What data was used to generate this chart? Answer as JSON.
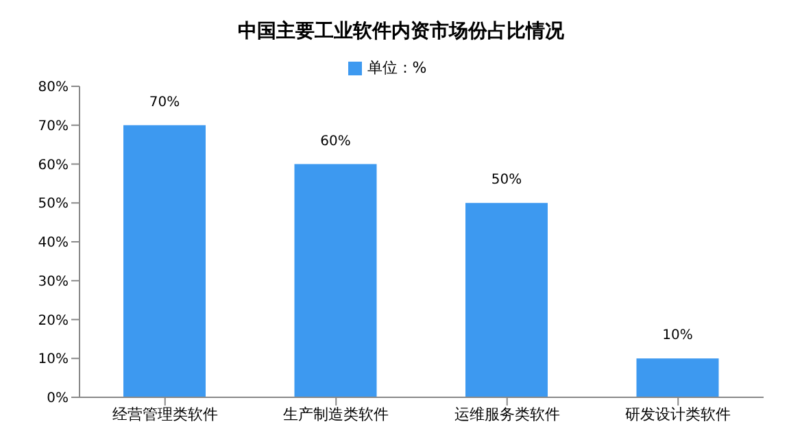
{
  "chart_data": {
    "type": "bar",
    "title": "中国主要工业软件内资市场份占比情况",
    "categories": [
      "经营管理类软件",
      "生产制造类软件",
      "运维服务类软件",
      "研发设计类软件"
    ],
    "series": [
      {
        "name": "单位：%",
        "color": "#3d99f0",
        "values": [
          70,
          60,
          50,
          10
        ],
        "value_labels": [
          "70%",
          "60%",
          "50%",
          "10%"
        ]
      }
    ],
    "ylim": [
      0,
      80
    ],
    "yticks": [
      {
        "value": 0,
        "label": "0%"
      },
      {
        "value": 10,
        "label": "10%"
      },
      {
        "value": 20,
        "label": "20%"
      },
      {
        "value": 30,
        "label": "30%"
      },
      {
        "value": 40,
        "label": "40%"
      },
      {
        "value": 50,
        "label": "50%"
      },
      {
        "value": 60,
        "label": "60%"
      },
      {
        "value": 70,
        "label": "70%"
      },
      {
        "value": 80,
        "label": "80%"
      }
    ],
    "grid": false,
    "legend": "top"
  }
}
